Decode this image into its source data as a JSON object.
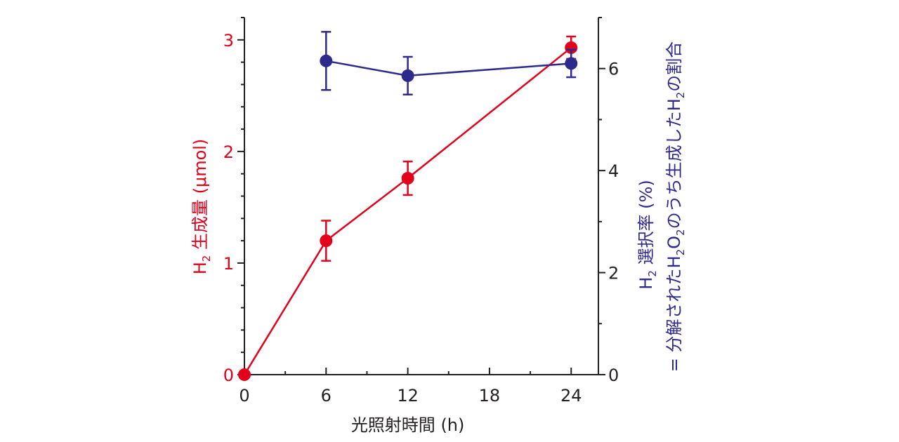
{
  "chart_data": {
    "type": "line",
    "xlabel": "光照射時間 (h)",
    "x_ticks": [
      0,
      6,
      12,
      18,
      24
    ],
    "xlim": [
      0,
      26
    ],
    "left_axis": {
      "label_sub": "2",
      "label_prefix": "H",
      "label_suffix": " 生成量 (μmol)",
      "ylim": [
        0,
        3.2
      ],
      "ticks": [
        0,
        1,
        2,
        3
      ],
      "color": "#e3001b"
    },
    "right_axis": {
      "line1": {
        "prefix": "H",
        "sub": "2",
        "suffix": " 選択率 (%)"
      },
      "line2": {
        "parts": [
          {
            "t": "= 分解されたH",
            "sub": false
          },
          {
            "t": "2",
            "sub": true
          },
          {
            "t": "O",
            "sub": false
          },
          {
            "t": "2",
            "sub": true
          },
          {
            "t": "のうち生成したH",
            "sub": false
          },
          {
            "t": "2",
            "sub": true
          },
          {
            "t": "の割合",
            "sub": false
          }
        ]
      },
      "ylim": [
        0,
        7
      ],
      "ticks": [
        0,
        2,
        4,
        6
      ],
      "color": "#2e2a8c"
    },
    "series": [
      {
        "name": "H2 生成量",
        "axis": "left",
        "color": "#e3001b",
        "points": [
          {
            "x": 0,
            "y": 0,
            "err": 0
          },
          {
            "x": 6,
            "y": 1.2,
            "err": 0.18
          },
          {
            "x": 12,
            "y": 1.76,
            "err": 0.15
          },
          {
            "x": 24,
            "y": 2.93,
            "err": 0.1
          }
        ]
      },
      {
        "name": "H2 選択率",
        "axis": "right",
        "color": "#2e2a8c",
        "points": [
          {
            "x": 6,
            "y": 6.15,
            "err": 0.57
          },
          {
            "x": 12,
            "y": 5.86,
            "err": 0.37
          },
          {
            "x": 24,
            "y": 6.1,
            "err": 0.27
          }
        ]
      }
    ]
  }
}
